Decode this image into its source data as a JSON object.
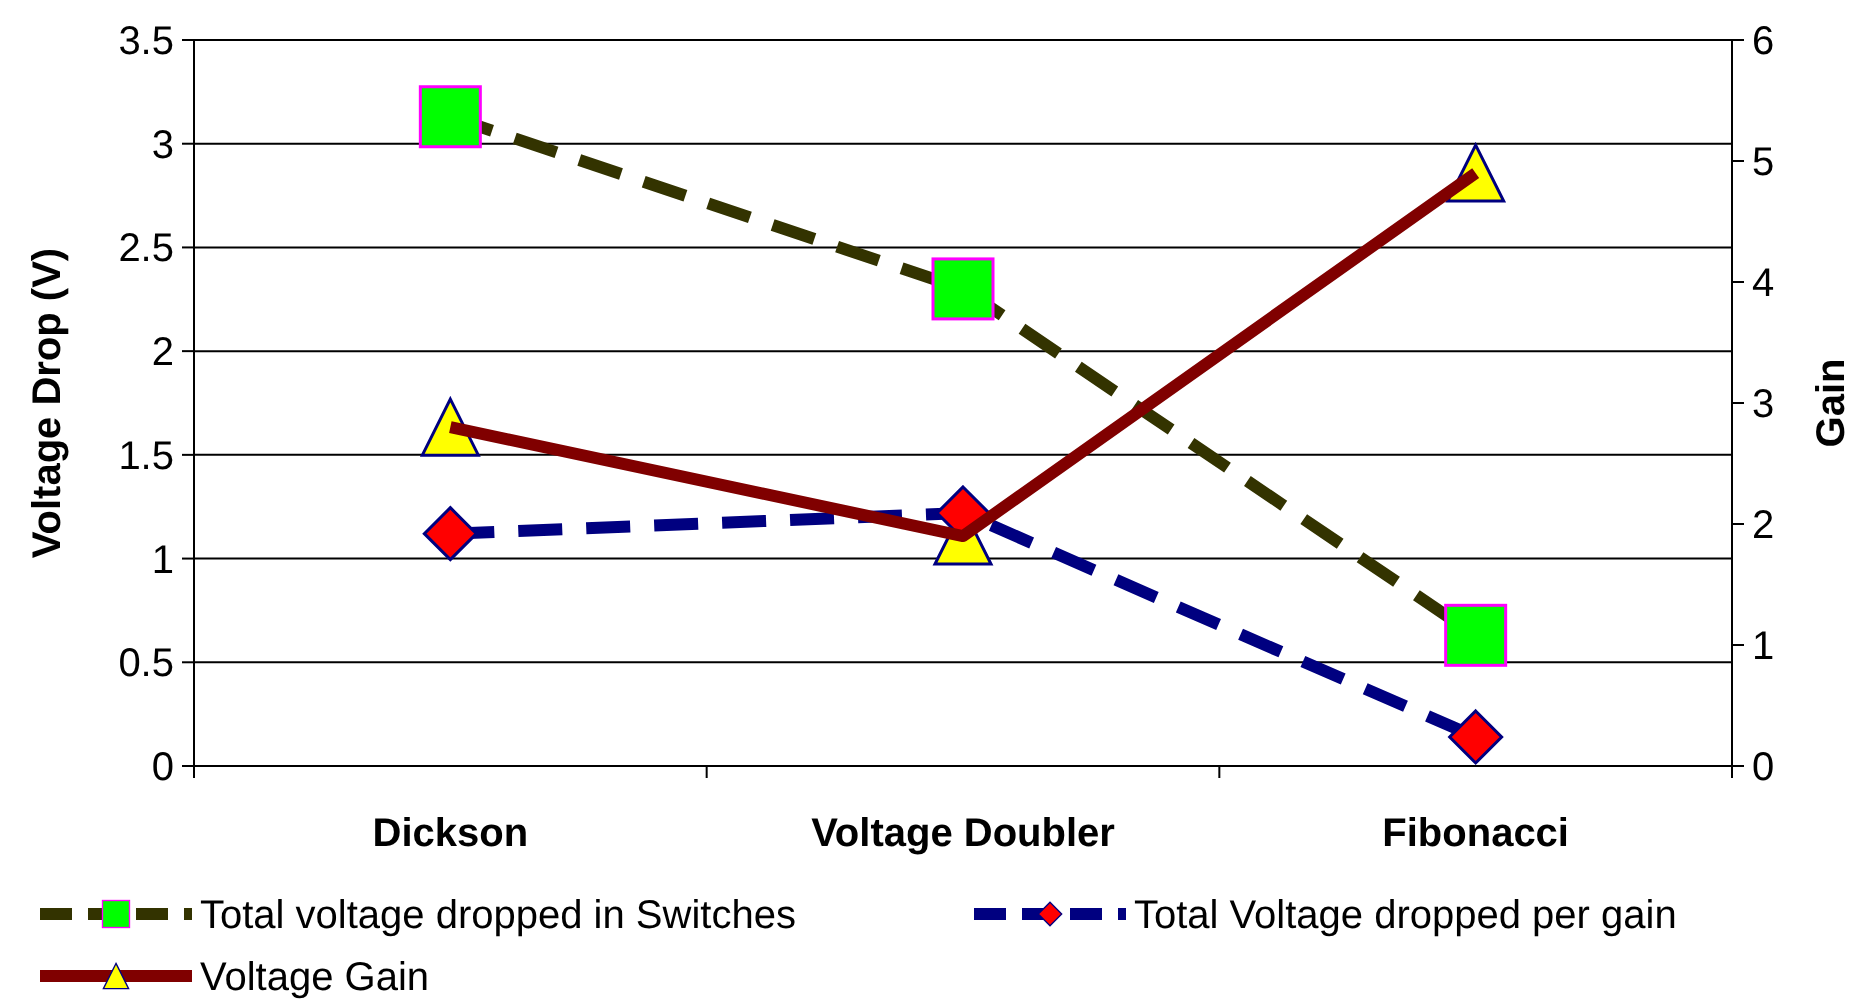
{
  "chart_data": {
    "type": "line",
    "categories": [
      "Dickson",
      "Voltage Doubler",
      "Fibonacci"
    ],
    "ylabel": "Voltage Drop (V)",
    "y2label": "Gain",
    "ylim": [
      0,
      3.5
    ],
    "yticks": [
      0,
      0.5,
      1,
      1.5,
      2,
      2.5,
      3,
      3.5
    ],
    "y2lim": [
      0,
      6
    ],
    "y2ticks": [
      0,
      1,
      2,
      3,
      4,
      5,
      6
    ],
    "grid": "y",
    "legend": "bottom",
    "series": [
      {
        "name": "Total voltage dropped in Switches",
        "color": "#333300",
        "colors": [
          "#00ff00",
          "#00ff00",
          "#00ff00"
        ],
        "marker": "square",
        "line_style": "dashed",
        "values": [
          3.13,
          2.3,
          0.63
        ]
      },
      {
        "name": "Total Voltage dropped per gain",
        "color": "#000080",
        "colors": [
          "#ff0000",
          "#ff0000",
          "#ff0000"
        ],
        "marker": "diamond",
        "line_style": "dashed",
        "values": [
          1.12,
          1.22,
          0.14
        ]
      },
      {
        "name": "Voltage Gain",
        "color": "#800000",
        "colors": [
          "#ffff00",
          "#ffff00",
          "#ffff00"
        ],
        "marker": "triangle",
        "line_style": "solid",
        "axis": "y2",
        "values": [
          2.8,
          1.9,
          4.9
        ]
      }
    ]
  }
}
